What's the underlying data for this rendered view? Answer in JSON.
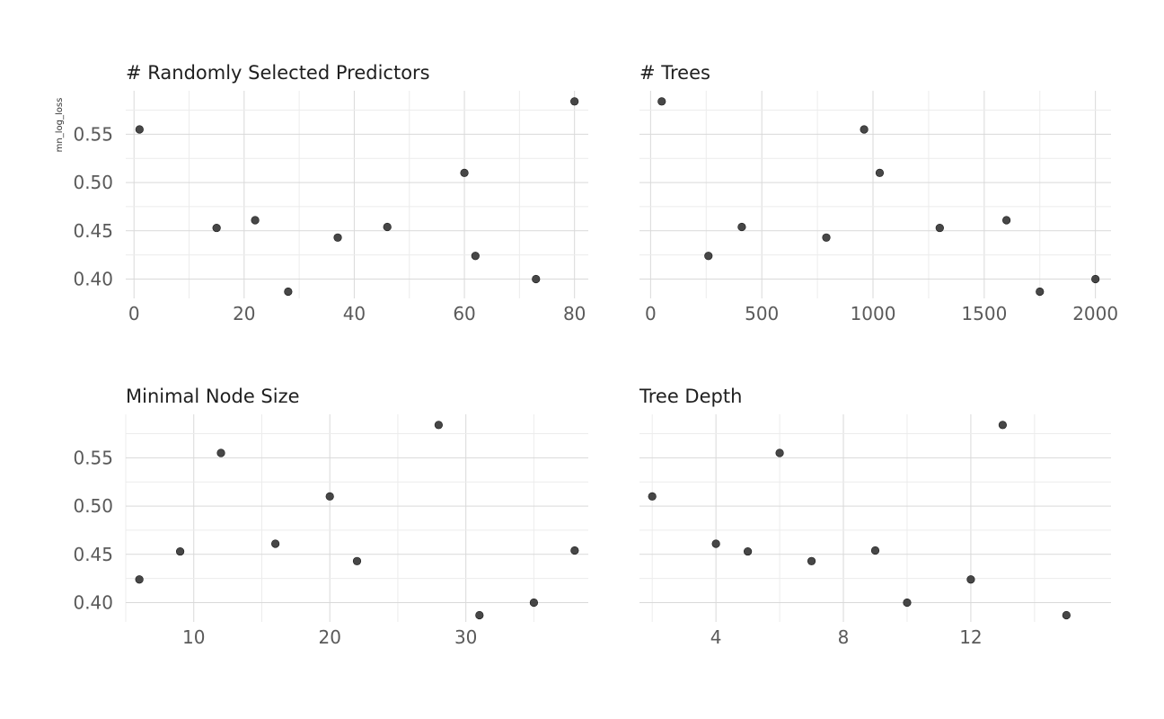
{
  "chart_data": {
    "type": "scatter",
    "ylabel": "mn_log_loss",
    "shared_y_ticks": [
      "0.40",
      "0.45",
      "0.50",
      "0.55"
    ],
    "ylim": [
      0.38,
      0.595
    ],
    "grid": true,
    "point_color": "#333333",
    "panels": [
      {
        "title": "# Randomly Selected Predictors",
        "xlim": [
          -1.5,
          82.5
        ],
        "x_ticks": [
          "0",
          "20",
          "40",
          "60",
          "80"
        ],
        "x": [
          1,
          15,
          22,
          28,
          37,
          46,
          60,
          62,
          73,
          80
        ],
        "y": [
          0.555,
          0.453,
          0.461,
          0.387,
          0.443,
          0.454,
          0.51,
          0.424,
          0.4,
          0.584
        ]
      },
      {
        "title": "# Trees",
        "xlim": [
          -50,
          2070
        ],
        "x_ticks": [
          "0",
          "500",
          "1000",
          "1500",
          "2000"
        ],
        "x": [
          50,
          260,
          410,
          790,
          960,
          1030,
          1300,
          1600,
          1750,
          2000
        ],
        "y": [
          0.584,
          0.424,
          0.454,
          0.443,
          0.555,
          0.51,
          0.453,
          0.461,
          0.387,
          0.4
        ]
      },
      {
        "title": "Minimal Node Size",
        "xlim": [
          5,
          39
        ],
        "x_ticks": [
          "10",
          "20",
          "30"
        ],
        "x": [
          6,
          9,
          12,
          16,
          20,
          22,
          28,
          31,
          35,
          38
        ],
        "y": [
          0.424,
          0.453,
          0.555,
          0.461,
          0.51,
          0.443,
          0.584,
          0.387,
          0.4,
          0.454
        ]
      },
      {
        "title": "Tree Depth",
        "xlim": [
          1.6,
          16.4
        ],
        "x_ticks": [
          "4",
          "8",
          "12"
        ],
        "x": [
          2,
          4,
          5,
          6,
          7,
          9,
          10,
          12,
          13,
          15
        ],
        "y": [
          0.51,
          0.461,
          0.453,
          0.555,
          0.443,
          0.454,
          0.4,
          0.424,
          0.584,
          0.387
        ]
      }
    ]
  }
}
